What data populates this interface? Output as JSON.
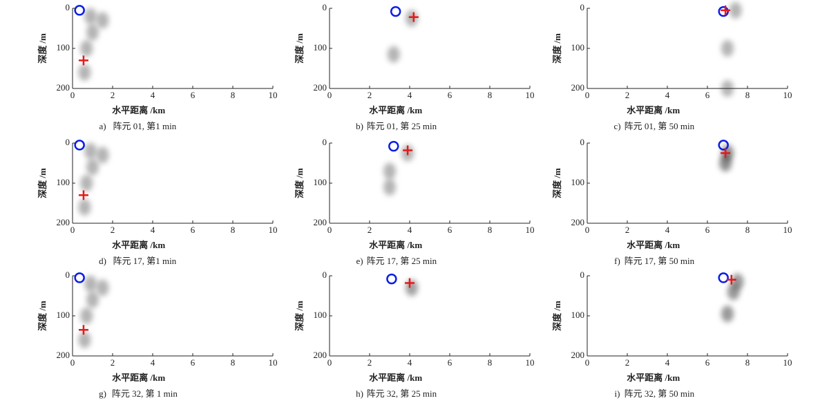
{
  "chart_data": [
    {
      "type": "scatter",
      "panel_label": "a)",
      "caption": "阵元 01, 第1 min",
      "xlabel": "水平距离 /km",
      "ylabel": "深度 /m",
      "xlim": [
        0,
        10
      ],
      "ylim": [
        200,
        0
      ],
      "xticks": [
        0,
        2,
        4,
        6,
        8,
        10
      ],
      "yticks": [
        0,
        100,
        200
      ],
      "series": [
        {
          "marker": "blob",
          "color": "#777",
          "x": [
            0.9,
            1.0,
            0.7,
            0.6,
            1.5
          ],
          "y": [
            20,
            60,
            100,
            160,
            30
          ]
        },
        {
          "marker": "circle",
          "color": "#0a1ee6",
          "x": [
            0.35
          ],
          "y": [
            5
          ]
        },
        {
          "marker": "plus",
          "color": "#e81818",
          "x": [
            0.55
          ],
          "y": [
            130
          ]
        }
      ]
    },
    {
      "type": "scatter",
      "panel_label": "b)",
      "caption": "阵元 01, 第 25 min",
      "xlabel": "水平距离 /km",
      "ylabel": "深度 /m",
      "xlim": [
        0,
        10
      ],
      "ylim": [
        200,
        0
      ],
      "xticks": [
        0,
        2,
        4,
        6,
        8,
        10
      ],
      "yticks": [
        0,
        100,
        200
      ],
      "series": [
        {
          "marker": "blob",
          "color": "#777",
          "x": [
            4.1,
            3.2
          ],
          "y": [
            25,
            115
          ]
        },
        {
          "marker": "circle",
          "color": "#0a1ee6",
          "x": [
            3.3
          ],
          "y": [
            8
          ]
        },
        {
          "marker": "plus",
          "color": "#e81818",
          "x": [
            4.2
          ],
          "y": [
            22
          ]
        }
      ]
    },
    {
      "type": "scatter",
      "panel_label": "c)",
      "caption": "阵元 01, 第 50 min",
      "xlabel": "水平距离 /km",
      "ylabel": "深度 /m",
      "xlim": [
        0,
        10
      ],
      "ylim": [
        200,
        0
      ],
      "xticks": [
        0,
        2,
        4,
        6,
        8,
        10
      ],
      "yticks": [
        0,
        100,
        200
      ],
      "series": [
        {
          "marker": "blob",
          "color": "#777",
          "x": [
            7.4,
            7.0,
            7.0
          ],
          "y": [
            5,
            100,
            200
          ]
        },
        {
          "marker": "circle",
          "color": "#0a1ee6",
          "x": [
            6.8
          ],
          "y": [
            8
          ]
        },
        {
          "marker": "plus",
          "color": "#e81818",
          "x": [
            6.9
          ],
          "y": [
            5
          ]
        }
      ]
    },
    {
      "type": "scatter",
      "panel_label": "d)",
      "caption": "阵元 17, 第1 min",
      "xlabel": "水平距离 /km",
      "ylabel": "深度 /m",
      "xlim": [
        0,
        10
      ],
      "ylim": [
        200,
        0
      ],
      "xticks": [
        0,
        2,
        4,
        6,
        8,
        10
      ],
      "yticks": [
        0,
        100,
        200
      ],
      "series": [
        {
          "marker": "blob",
          "color": "#777",
          "x": [
            0.9,
            1.0,
            0.7,
            0.6,
            1.5
          ],
          "y": [
            20,
            60,
            100,
            160,
            30
          ]
        },
        {
          "marker": "circle",
          "color": "#0a1ee6",
          "x": [
            0.35
          ],
          "y": [
            5
          ]
        },
        {
          "marker": "plus",
          "color": "#e81818",
          "x": [
            0.55
          ],
          "y": [
            130
          ]
        }
      ]
    },
    {
      "type": "scatter",
      "panel_label": "e)",
      "caption": "阵元 17, 第 25 min",
      "xlabel": "水平距离 /km",
      "ylabel": "深度 /m",
      "xlim": [
        0,
        10
      ],
      "ylim": [
        200,
        0
      ],
      "xticks": [
        0,
        2,
        4,
        6,
        8,
        10
      ],
      "yticks": [
        0,
        100,
        200
      ],
      "series": [
        {
          "marker": "blob",
          "color": "#777",
          "x": [
            3.9,
            3.0,
            3.0
          ],
          "y": [
            25,
            70,
            110
          ]
        },
        {
          "marker": "circle",
          "color": "#0a1ee6",
          "x": [
            3.2
          ],
          "y": [
            8
          ]
        },
        {
          "marker": "plus",
          "color": "#e81818",
          "x": [
            3.9
          ],
          "y": [
            18
          ]
        }
      ]
    },
    {
      "type": "scatter",
      "panel_label": "f)",
      "caption": "阵元 17, 第 50 min",
      "xlabel": "水平距离 /km",
      "ylabel": "深度 /m",
      "xlim": [
        0,
        10
      ],
      "ylim": [
        200,
        0
      ],
      "xticks": [
        0,
        2,
        4,
        6,
        8,
        10
      ],
      "yticks": [
        0,
        100,
        200
      ],
      "series": [
        {
          "marker": "blob",
          "color": "#333",
          "x": [
            7.0,
            6.9
          ],
          "y": [
            25,
            50
          ]
        },
        {
          "marker": "circle",
          "color": "#0a1ee6",
          "x": [
            6.8
          ],
          "y": [
            5
          ]
        },
        {
          "marker": "plus",
          "color": "#e81818",
          "x": [
            6.9
          ],
          "y": [
            25
          ]
        }
      ]
    },
    {
      "type": "scatter",
      "panel_label": "g)",
      "caption": "阵元 32, 第 1 min",
      "xlabel": "水平距离 /km",
      "ylabel": "深度 /m",
      "xlim": [
        0,
        10
      ],
      "ylim": [
        200,
        0
      ],
      "xticks": [
        0,
        2,
        4,
        6,
        8,
        10
      ],
      "yticks": [
        0,
        100,
        200
      ],
      "series": [
        {
          "marker": "blob",
          "color": "#777",
          "x": [
            0.9,
            1.0,
            0.7,
            0.6,
            1.5
          ],
          "y": [
            20,
            60,
            100,
            160,
            30
          ]
        },
        {
          "marker": "circle",
          "color": "#0a1ee6",
          "x": [
            0.35
          ],
          "y": [
            5
          ]
        },
        {
          "marker": "plus",
          "color": "#e81818",
          "x": [
            0.55
          ],
          "y": [
            135
          ]
        }
      ]
    },
    {
      "type": "scatter",
      "panel_label": "h)",
      "caption": "阵元 32, 第 25 min",
      "xlabel": "水平距离 /km",
      "ylabel": "深度 /m",
      "xlim": [
        0,
        10
      ],
      "ylim": [
        200,
        0
      ],
      "xticks": [
        0,
        2,
        4,
        6,
        8,
        10
      ],
      "yticks": [
        0,
        100,
        200
      ],
      "series": [
        {
          "marker": "blob",
          "color": "#555",
          "x": [
            4.1
          ],
          "y": [
            30
          ]
        },
        {
          "marker": "circle",
          "color": "#0a1ee6",
          "x": [
            3.1
          ],
          "y": [
            8
          ]
        },
        {
          "marker": "plus",
          "color": "#e81818",
          "x": [
            4.0
          ],
          "y": [
            18
          ]
        }
      ]
    },
    {
      "type": "scatter",
      "panel_label": "i)",
      "caption": "阵元 32, 第 50 min",
      "xlabel": "水平距离 /km",
      "ylabel": "深度 /m",
      "xlim": [
        0,
        10
      ],
      "ylim": [
        200,
        0
      ],
      "xticks": [
        0,
        2,
        4,
        6,
        8,
        10
      ],
      "yticks": [
        0,
        100,
        200
      ],
      "series": [
        {
          "marker": "blob",
          "color": "#444",
          "x": [
            7.5,
            7.3,
            7.0
          ],
          "y": [
            15,
            40,
            95
          ]
        },
        {
          "marker": "circle",
          "color": "#0a1ee6",
          "x": [
            6.8
          ],
          "y": [
            5
          ]
        },
        {
          "marker": "plus",
          "color": "#e81818",
          "x": [
            7.2
          ],
          "y": [
            10
          ]
        }
      ]
    }
  ]
}
